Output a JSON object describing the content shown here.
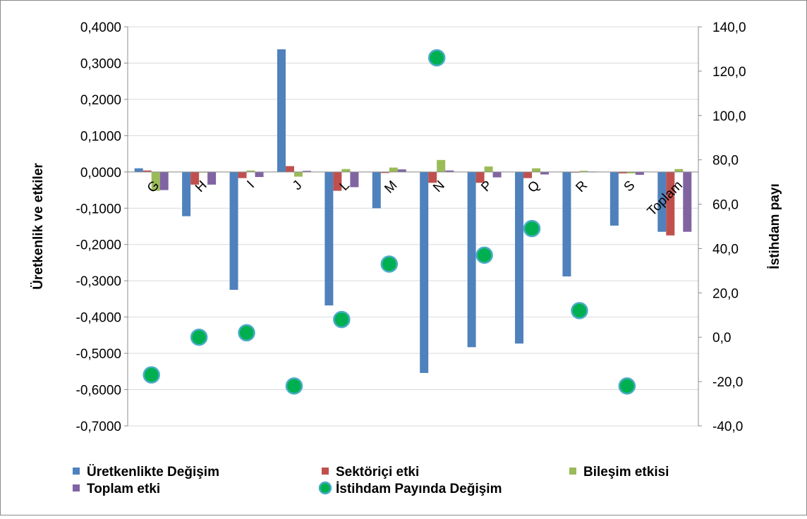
{
  "chart_data": {
    "type": "bar",
    "categories": [
      "G",
      "H",
      "I",
      "J",
      "L",
      "M",
      "N",
      "P",
      "Q",
      "R",
      "S",
      "Toplam"
    ],
    "ylabel_left": "Üretkenlik ve etkiler",
    "ylabel_right": "İstihdam payı",
    "ylim_left": [
      -0.7,
      0.4
    ],
    "ylim_right": [
      -40,
      140
    ],
    "left_ticks": [
      "0,4000",
      "0,3000",
      "0,2000",
      "0,1000",
      "0,0000",
      "-0,1000",
      "-0,2000",
      "-0,3000",
      "-0,4000",
      "-0,5000",
      "-0,6000",
      "-0,7000"
    ],
    "right_ticks": [
      "140,0",
      "120,0",
      "100,0",
      "80,0",
      "60,0",
      "40,0",
      "20,0",
      "0,0",
      "-20,0",
      "-40,0"
    ],
    "series": [
      {
        "name": "Üretkenlikte Değişim",
        "type": "bar",
        "axis": "left",
        "color": "#4f81bd",
        "values": [
          0.01,
          -0.122,
          -0.325,
          0.338,
          -0.368,
          -0.1,
          -0.554,
          -0.483,
          -0.473,
          -0.288,
          -0.148,
          -0.165
        ]
      },
      {
        "name": "Sektöriçi etki",
        "type": "bar",
        "axis": "left",
        "color": "#c0504d",
        "values": [
          0.004,
          -0.035,
          -0.017,
          0.016,
          -0.052,
          -0.003,
          -0.03,
          -0.03,
          -0.017,
          -0.001,
          -0.004,
          -0.175
        ]
      },
      {
        "name": "Bileşim etkisi",
        "type": "bar",
        "axis": "left",
        "color": "#9bbb59",
        "values": [
          -0.052,
          0.0,
          0.004,
          -0.013,
          0.008,
          0.012,
          0.033,
          0.015,
          0.01,
          0.003,
          -0.004,
          0.008
        ]
      },
      {
        "name": "Toplam etki",
        "type": "bar",
        "axis": "left",
        "color": "#8064a2",
        "values": [
          -0.05,
          -0.035,
          -0.014,
          0.003,
          -0.042,
          0.007,
          0.004,
          -0.015,
          -0.007,
          0.001,
          -0.008,
          -0.165
        ]
      },
      {
        "name": "İstihdam Payında Değişim",
        "type": "scatter",
        "axis": "right",
        "color": "#00b050",
        "values": [
          -17.0,
          0.0,
          2.0,
          -22.0,
          8.0,
          33.0,
          126.0,
          37.0,
          49.0,
          12.0,
          -22.0,
          null
        ]
      }
    ],
    "legend": {
      "position": "bottom"
    },
    "grid": true
  }
}
